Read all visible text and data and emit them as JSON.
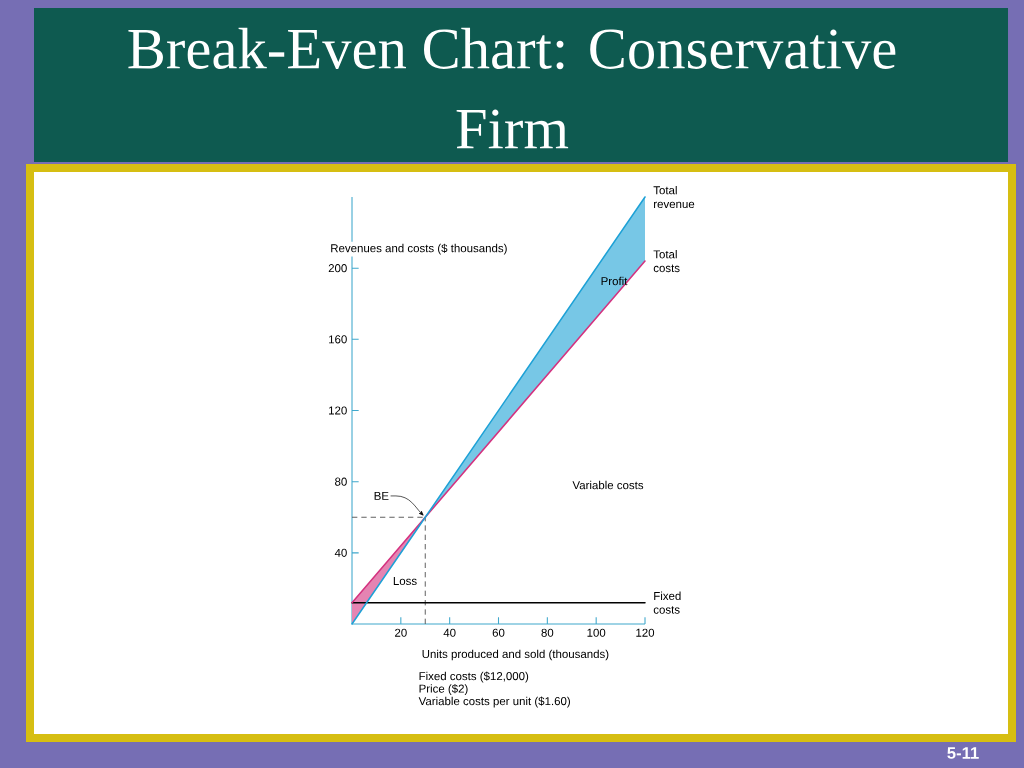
{
  "chart_data": {
    "type": "line",
    "title": "Break-Even Chart: Conservative Firm",
    "xlabel": "Units produced and sold (thousands)",
    "ylabel": "Revenues and costs ($ thousands)",
    "xlim": [
      0,
      120
    ],
    "ylim": [
      0,
      240
    ],
    "xticks": [
      20,
      40,
      60,
      80,
      100,
      120
    ],
    "yticks": [
      40,
      80,
      120,
      160,
      200
    ],
    "series": [
      {
        "name": "Fixed costs",
        "x": [
          0,
          120
        ],
        "values": [
          12,
          12
        ],
        "color": "#000000"
      },
      {
        "name": "Total costs",
        "x": [
          0,
          30,
          120
        ],
        "values": [
          12,
          60,
          204
        ],
        "lower": [
          0,
          60,
          null
        ],
        "upper": [
          12,
          60,
          null
        ],
        "color": "#d4327f"
      },
      {
        "name": "Total revenue",
        "x": [
          0,
          30,
          120
        ],
        "values": [
          0,
          60,
          240
        ],
        "lower": [
          null,
          60,
          204
        ],
        "upper": [
          null,
          60,
          240
        ],
        "color": "#1da1d6"
      }
    ],
    "ref_lines": [
      {
        "axis": "x",
        "value": 30,
        "color": "#555555",
        "line_style": "dashed"
      },
      {
        "axis": "y",
        "value": 60,
        "color": "#555555",
        "line_style": "dashed"
      }
    ],
    "annotations": [
      "Fixed costs ($12,000)",
      "Price ($2)",
      "Variable costs per unit ($1.60)",
      "5-11",
      "Profit",
      "Loss",
      "Variable costs",
      {
        "text": "BE",
        "x": 30,
        "y": 60
      }
    ]
  }
}
